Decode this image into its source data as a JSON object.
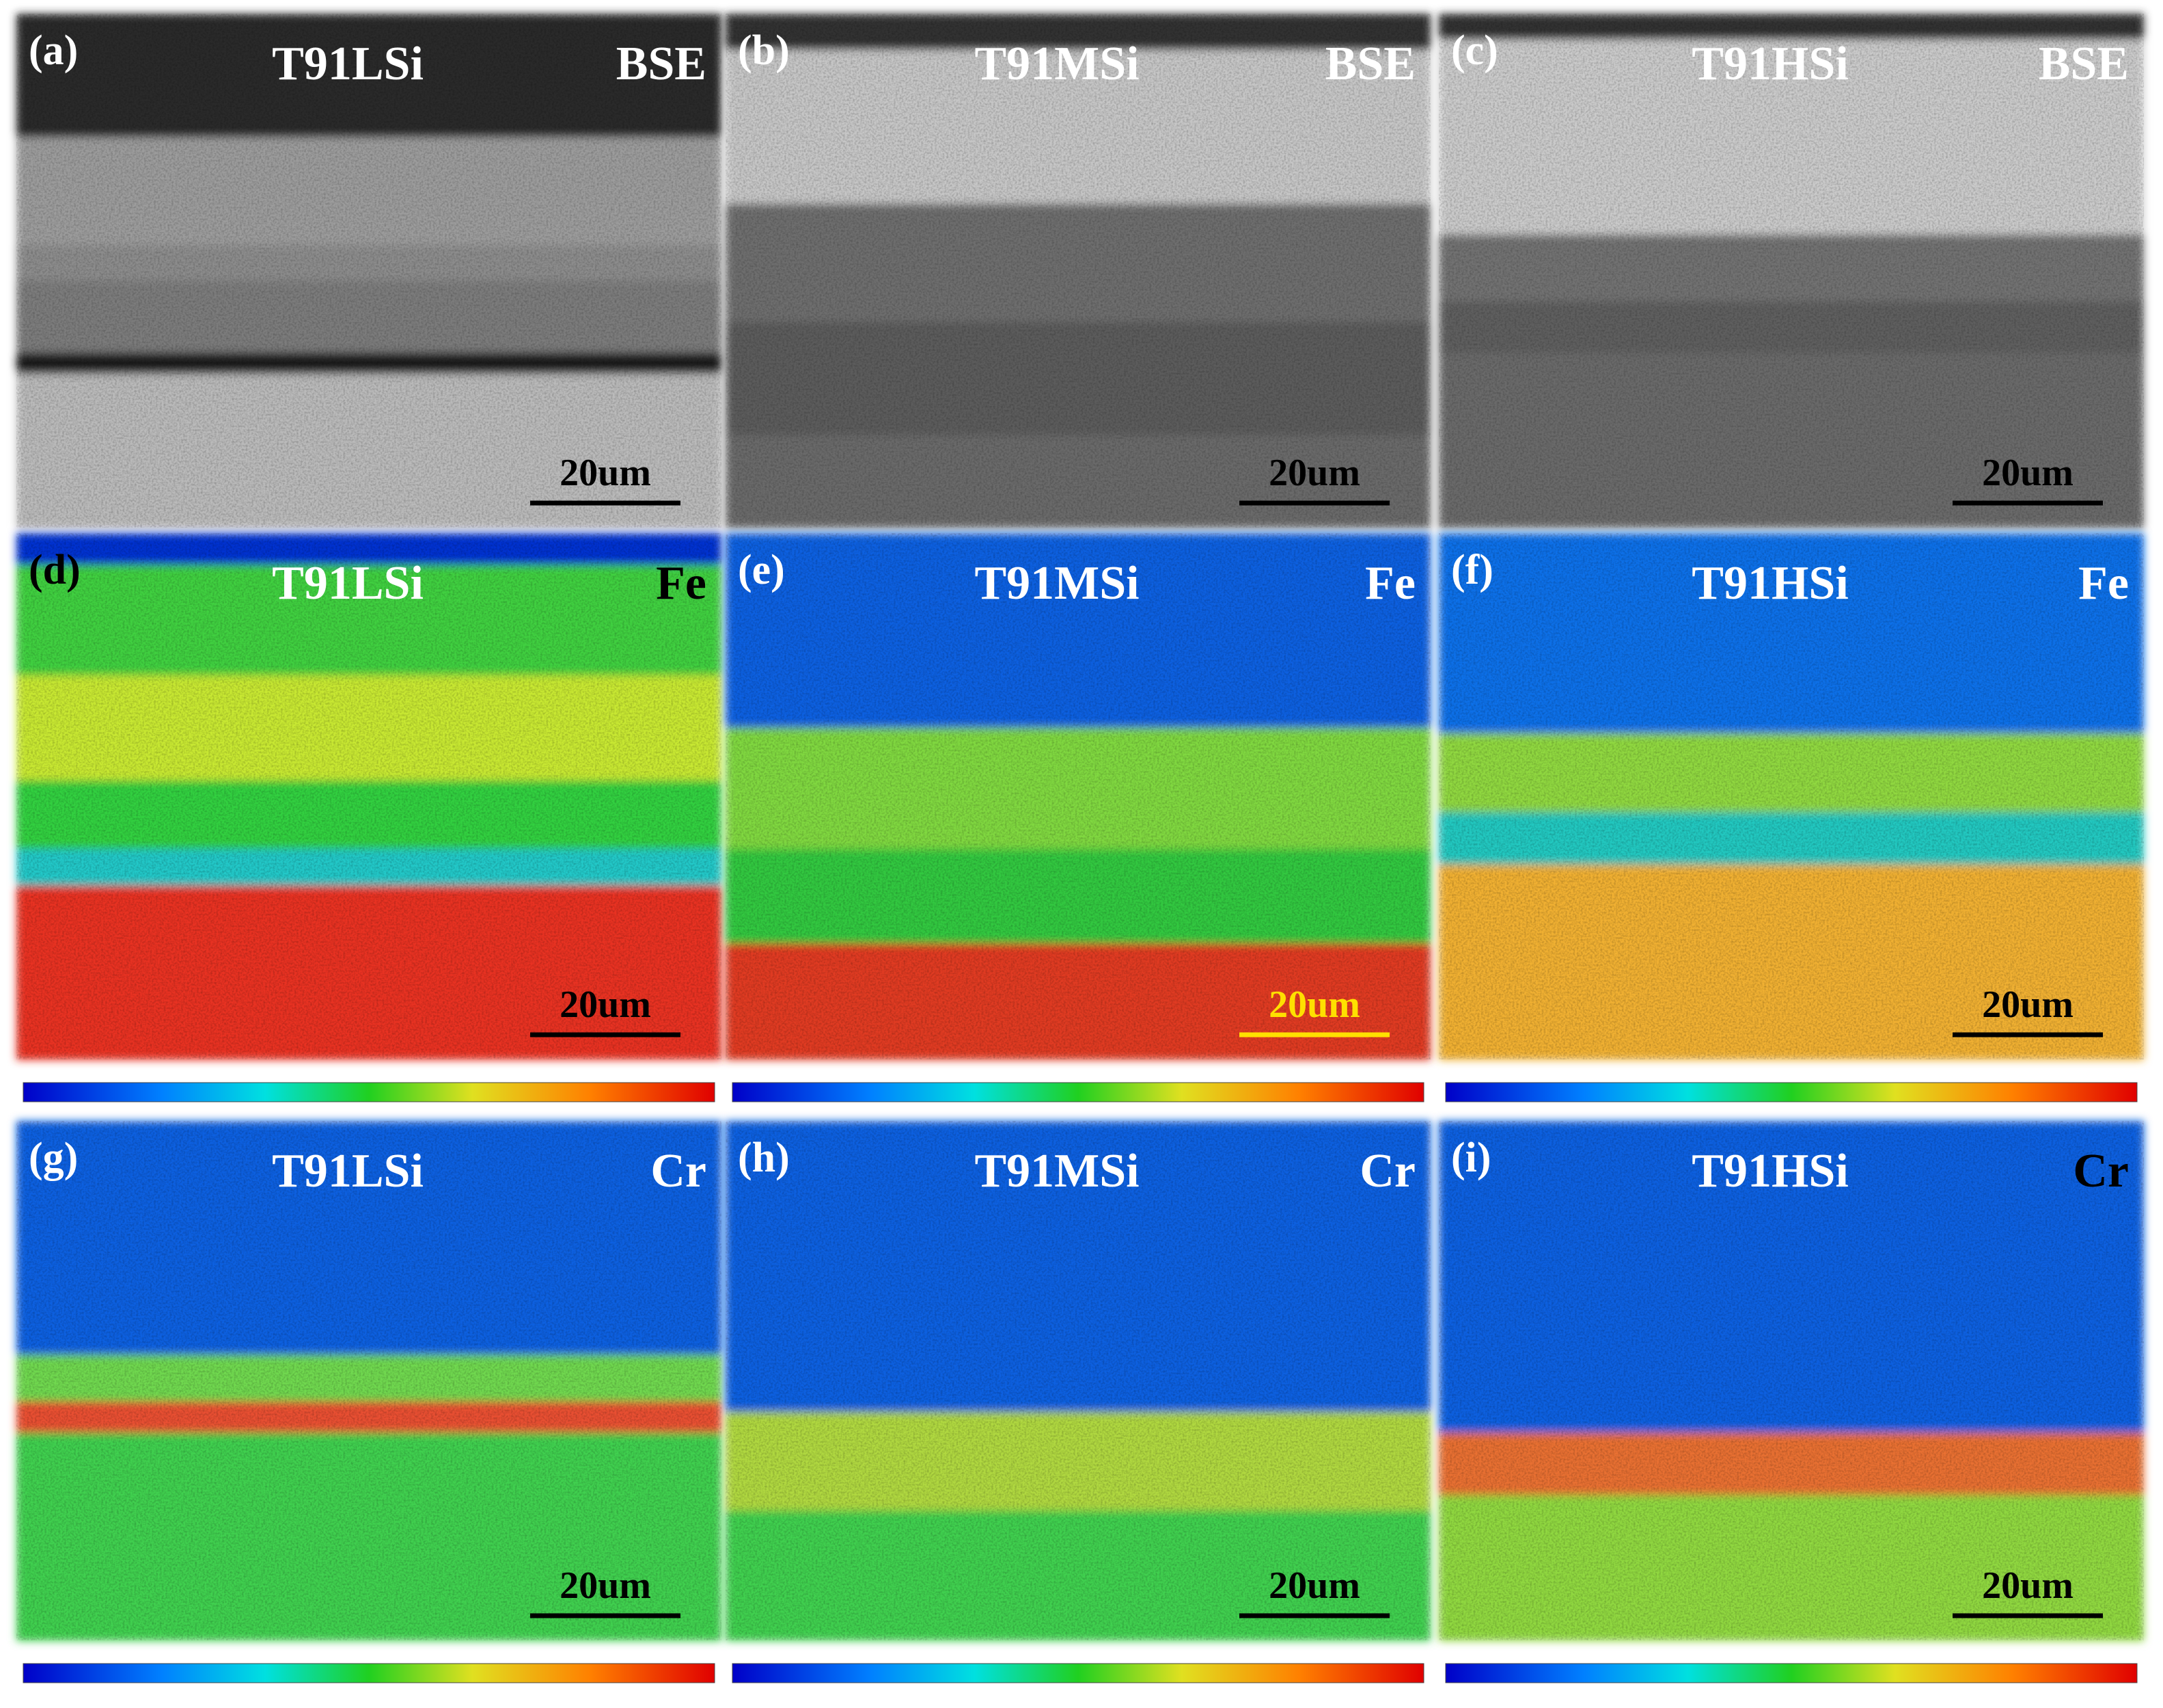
{
  "panels": [
    {
      "label": "(a)",
      "sample": "T91LSi",
      "signal": "BSE",
      "scale_bar": "20um"
    },
    {
      "label": "(b)",
      "sample": "T91MSi",
      "signal": "BSE",
      "scale_bar": "20um"
    },
    {
      "label": "(c)",
      "sample": "T91HSi",
      "signal": "BSE",
      "scale_bar": "20um"
    },
    {
      "label": "(d)",
      "sample": "T91LSi",
      "signal": "Fe",
      "scale_bar": "20um"
    },
    {
      "label": "(e)",
      "sample": "T91MSi",
      "signal": "Fe",
      "scale_bar": "20um"
    },
    {
      "label": "(f)",
      "sample": "T91HSi",
      "signal": "Fe",
      "scale_bar": "20um"
    },
    {
      "label": "(g)",
      "sample": "T91LSi",
      "signal": "Cr",
      "scale_bar": "20um"
    },
    {
      "label": "(h)",
      "sample": "T91MSi",
      "signal": "Cr",
      "scale_bar": "20um"
    },
    {
      "label": "(i)",
      "sample": "T91HSi",
      "signal": "Cr",
      "scale_bar": "20um"
    }
  ]
}
